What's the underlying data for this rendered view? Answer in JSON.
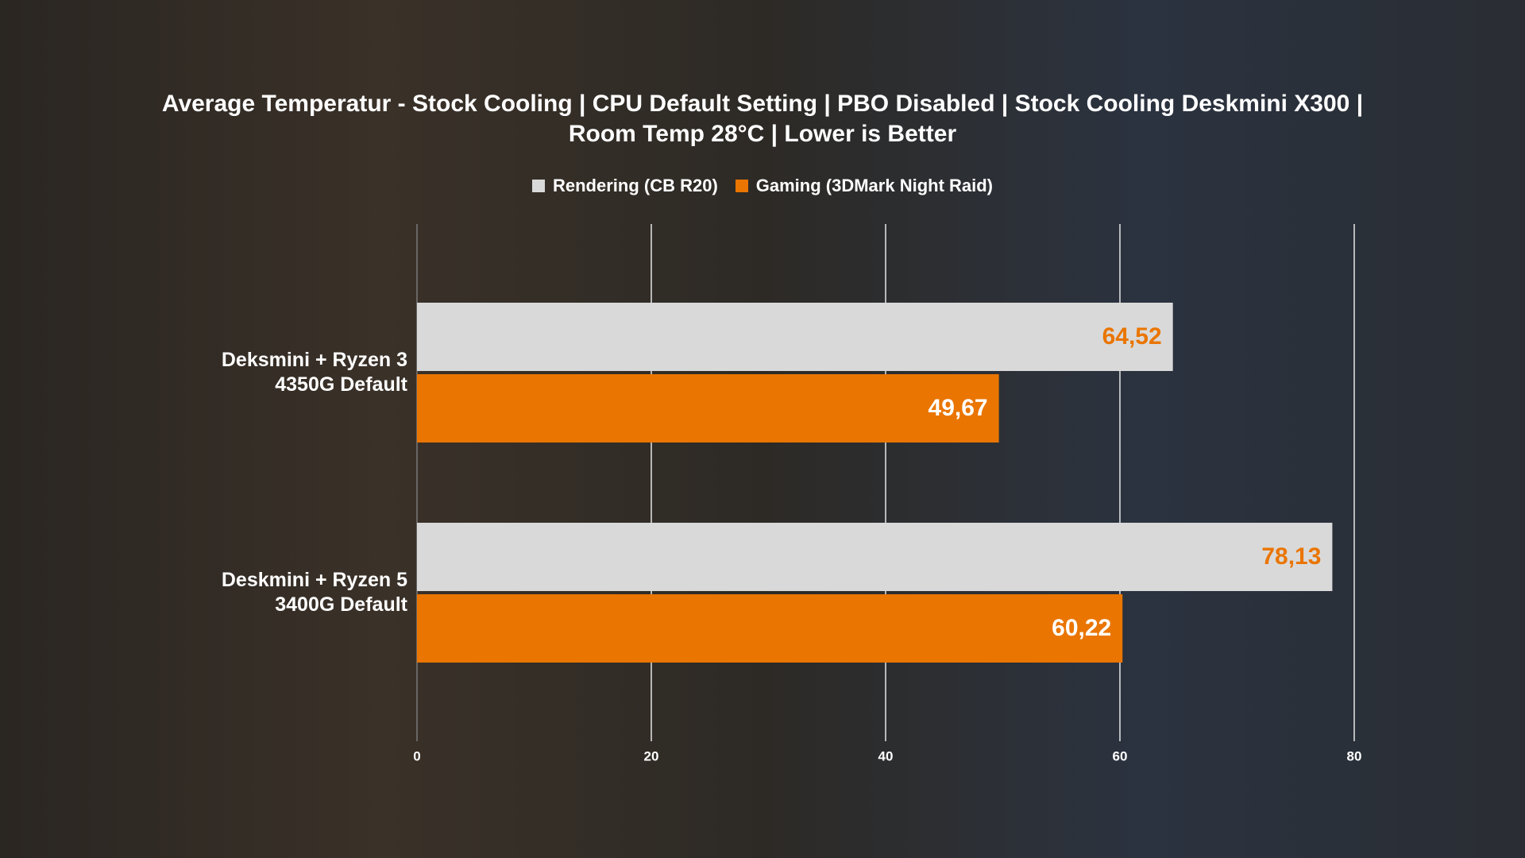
{
  "chart_data": {
    "type": "hbar",
    "title": "Average Temperatur - Stock Cooling | CPU Default Setting | PBO Disabled | Stock Cooling Deskmini X300 | Room Temp 28°C | Lower is Better",
    "categories": [
      "Deksmini + Ryzen 3 4350G Default",
      "Deskmini + Ryzen 5 3400G Default"
    ],
    "series": [
      {
        "name": "Rendering (CB R20)",
        "color": "#d9d9d9",
        "label_color": "#ea7500",
        "values": [
          64.52,
          78.13
        ],
        "value_labels": [
          "64,52",
          "78,13"
        ]
      },
      {
        "name": "Gaming (3DMark Night Raid)",
        "color": "#ea7500",
        "label_color": "#ffffff",
        "values": [
          49.67,
          60.22
        ],
        "value_labels": [
          "49,67",
          "60,22"
        ]
      }
    ],
    "xlim": [
      0,
      80
    ],
    "xticks": [
      0,
      20,
      40,
      60,
      80
    ],
    "grid": true
  }
}
